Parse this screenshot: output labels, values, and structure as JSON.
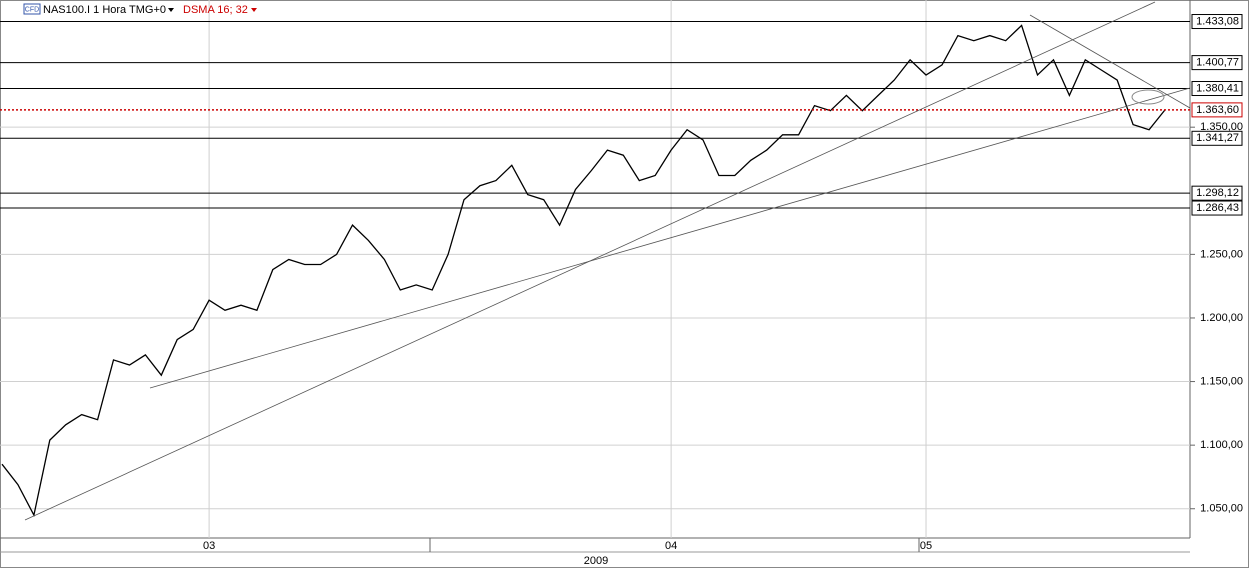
{
  "chart_data": {
    "type": "line",
    "header": {
      "badge": "CFD",
      "symbol": "NAS100.I 1 Hora TMG+0",
      "indicator": "DSMA 16; 32"
    },
    "categories": [
      null,
      null,
      null,
      null,
      null,
      null,
      null,
      null,
      null,
      null,
      null,
      null,
      null,
      "03",
      null,
      null,
      null,
      null,
      null,
      null,
      null,
      null,
      null,
      null,
      null,
      null,
      null,
      null,
      null,
      null,
      null,
      null,
      null,
      null,
      null,
      null,
      null,
      null,
      null,
      null,
      null,
      null,
      "04",
      null,
      null,
      null,
      null,
      null,
      null,
      null,
      null,
      null,
      null,
      null,
      null,
      null,
      null,
      null,
      "05",
      null,
      null,
      null,
      null,
      null,
      null,
      null,
      null,
      null,
      null,
      null,
      null,
      null,
      null,
      null
    ],
    "year_label": "2009",
    "series": [
      {
        "color": "#000000",
        "values": [
          1085,
          1069,
          1045,
          1104,
          1116,
          1124,
          1120,
          1167,
          1163,
          1171,
          1155,
          1183,
          1191,
          1214,
          1206,
          1210,
          1206,
          1238,
          1246,
          1242,
          1242,
          1250,
          1273,
          1261,
          1246,
          1222,
          1226,
          1222,
          1250,
          1293,
          1304,
          1308,
          1320,
          1297,
          1293,
          1273,
          1301,
          1316,
          1332,
          1328,
          1308,
          1312,
          1332,
          1348,
          1340,
          1312,
          1312,
          1324,
          1332,
          1344,
          1344,
          1367,
          1363,
          1375,
          1363,
          1375,
          1387,
          1403,
          1391,
          1399,
          1422,
          1418,
          1422,
          1418,
          1430,
          1391,
          1403,
          1375,
          1403,
          1395,
          1387,
          1352,
          1348,
          1363.6
        ]
      }
    ],
    "ylim": [
      1027,
      1450
    ],
    "yticks": [
      {
        "value": 1050,
        "label": "1.050,00"
      },
      {
        "value": 1100,
        "label": "1.100,00"
      },
      {
        "value": 1150,
        "label": "1.150,00"
      },
      {
        "value": 1200,
        "label": "1.200,00"
      },
      {
        "value": 1250,
        "label": "1.250,00"
      },
      {
        "value": 1350,
        "label": "1.350,00"
      }
    ],
    "grid": true,
    "levels": [
      {
        "value": 1433.08,
        "label": "1.433,08"
      },
      {
        "value": 1400.77,
        "label": "1.400,77"
      },
      {
        "value": 1380.41,
        "label": "1.380,41"
      },
      {
        "value": 1341.27,
        "label": "1.341,27"
      },
      {
        "value": 1298.12,
        "label": "1.298,12"
      },
      {
        "value": 1286.43,
        "label": "1.286,43"
      }
    ],
    "last_price": {
      "value": 1363.6,
      "label": "1.363,60",
      "color": "#cc0000"
    }
  }
}
